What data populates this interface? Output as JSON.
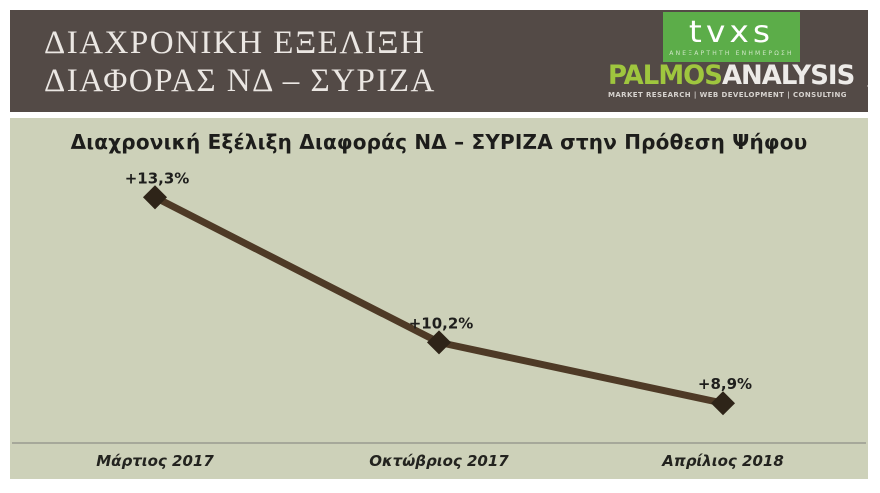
{
  "header": {
    "title_line1": "ΔΙΑΧΡΟΝΙΚΗ ΕΞΕΛΙΞΗ",
    "title_line2": "ΔΙΑΦΟΡΑΣ ΝΔ – ΣΥΡΙΖΑ",
    "tvxs_logo": {
      "text": "tvxs",
      "tagline": "ΑΝΕΞΑΡΤΗΤΗ ΕΝΗΜΕΡΩΣΗ",
      "bg_color": "#5cad49"
    },
    "palmos_logo": {
      "name_green": "PALMOS",
      "name_white": "ANALYSIS",
      "tagline": "MARKET RESEARCH | WEB DEVELOPMENT | CONSULTING",
      "green_color": "#9fc63e"
    }
  },
  "chart_data": {
    "type": "line",
    "title": "Διαχρονική Εξέλιξη Διαφοράς ΝΔ – ΣΥΡΙΖΑ στην Πρόθεση Ψήφου",
    "categories": [
      "Μάρτιος 2017",
      "Οκτώβριος 2017",
      "Απρίλιος 2018"
    ],
    "values": [
      13.3,
      10.2,
      8.9
    ],
    "point_labels": [
      "+13,3%",
      "+10,2%",
      "+8,9%"
    ],
    "ylim": [
      8.05,
      14.0
    ],
    "grid": false,
    "legend": "none",
    "marker_shape": "diamond",
    "line_color": "#4e3a26",
    "marker_color": "#2e2418",
    "label_color": "#1f1f1d",
    "axis_line_color": "#9a9a90",
    "panel_bg": "#cdd1b9"
  },
  "colors": {
    "page_bg": "#ffffff",
    "header_bg": "#534a46",
    "header_text": "#ebe7e3"
  }
}
